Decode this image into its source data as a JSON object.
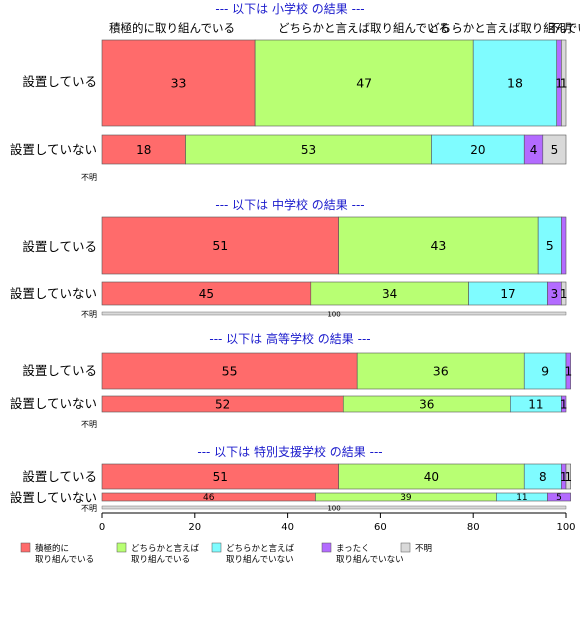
{
  "chart_data": {
    "type": "bar",
    "orientation": "horizontal",
    "stacked": true,
    "xlim": [
      0,
      100
    ],
    "x_ticks": [
      "0",
      "20",
      "40",
      "60",
      "80",
      "100"
    ],
    "column_headers": [
      "積極的に取り組んでいる",
      "どちらかと言えば取り組んでいる",
      "どちらかと言えば取り組んでいない"
    ],
    "legend": {
      "placement": "bottom",
      "entries": [
        {
          "line1": "積極的に",
          "line2": "取り組んでいる",
          "color": "#ff6b6b"
        },
        {
          "line1": "どちらかと言えば",
          "line2": "取り組んでいる",
          "color": "#b8ff73"
        },
        {
          "line1": "どちらかと言えば",
          "line2": "取り組んでいない",
          "color": "#7ffcff"
        },
        {
          "line1": "まったく",
          "line2": "取り組んでいない",
          "color": "#b36bff"
        },
        {
          "line1": "不明",
          "line2": "",
          "color": "#d9d9d9"
        }
      ]
    },
    "panels": [
      {
        "title": "--- 以下は 小学校 の結果 ---",
        "rows": [
          {
            "label": "設置している",
            "values": [
              33,
              47,
              18,
              1,
              1
            ],
            "labels": [
              "33",
              "47",
              "18",
              "1",
              "1"
            ],
            "last_label": "不明"
          },
          {
            "label": "設置していない",
            "values": [
              18,
              53,
              20,
              4,
              5
            ],
            "labels": [
              "18",
              "53",
              "20",
              "4",
              "5"
            ]
          },
          {
            "label": "不明",
            "values": [],
            "labels": []
          }
        ]
      },
      {
        "title": "--- 以下は 中学校 の結果 ---",
        "rows": [
          {
            "label": "設置している",
            "values": [
              51,
              43,
              5,
              1,
              0
            ],
            "labels": [
              "51",
              "43",
              "5",
              "",
              ""
            ]
          },
          {
            "label": "設置していない",
            "values": [
              45,
              34,
              17,
              3,
              1
            ],
            "labels": [
              "45",
              "34",
              "17",
              "3",
              "1"
            ]
          },
          {
            "label": "不明",
            "values": [
              0,
              0,
              0,
              0,
              100
            ],
            "labels": [
              "",
              "",
              "",
              "",
              "100"
            ]
          }
        ]
      },
      {
        "title": "--- 以下は 高等学校 の結果 ---",
        "rows": [
          {
            "label": "設置している",
            "values": [
              55,
              36,
              9,
              1,
              0
            ],
            "labels": [
              "55",
              "36",
              "9",
              "1",
              ""
            ]
          },
          {
            "label": "設置していない",
            "values": [
              52,
              36,
              11,
              1,
              0
            ],
            "labels": [
              "52",
              "36",
              "11",
              "1",
              ""
            ]
          },
          {
            "label": "不明",
            "values": [],
            "labels": []
          }
        ]
      },
      {
        "title": "--- 以下は 特別支援学校 の結果 ---",
        "rows": [
          {
            "label": "設置している",
            "values": [
              51,
              40,
              8,
              1,
              1
            ],
            "labels": [
              "51",
              "40",
              "8",
              "1",
              "1"
            ]
          },
          {
            "label": "設置していない",
            "values": [
              46,
              39,
              11,
              5,
              0
            ],
            "labels": [
              "46",
              "39",
              "11",
              "5",
              ""
            ]
          },
          {
            "label": "不明",
            "values": [
              0,
              0,
              0,
              0,
              100
            ],
            "labels": [
              "",
              "",
              "",
              "",
              "100"
            ]
          }
        ]
      }
    ]
  }
}
